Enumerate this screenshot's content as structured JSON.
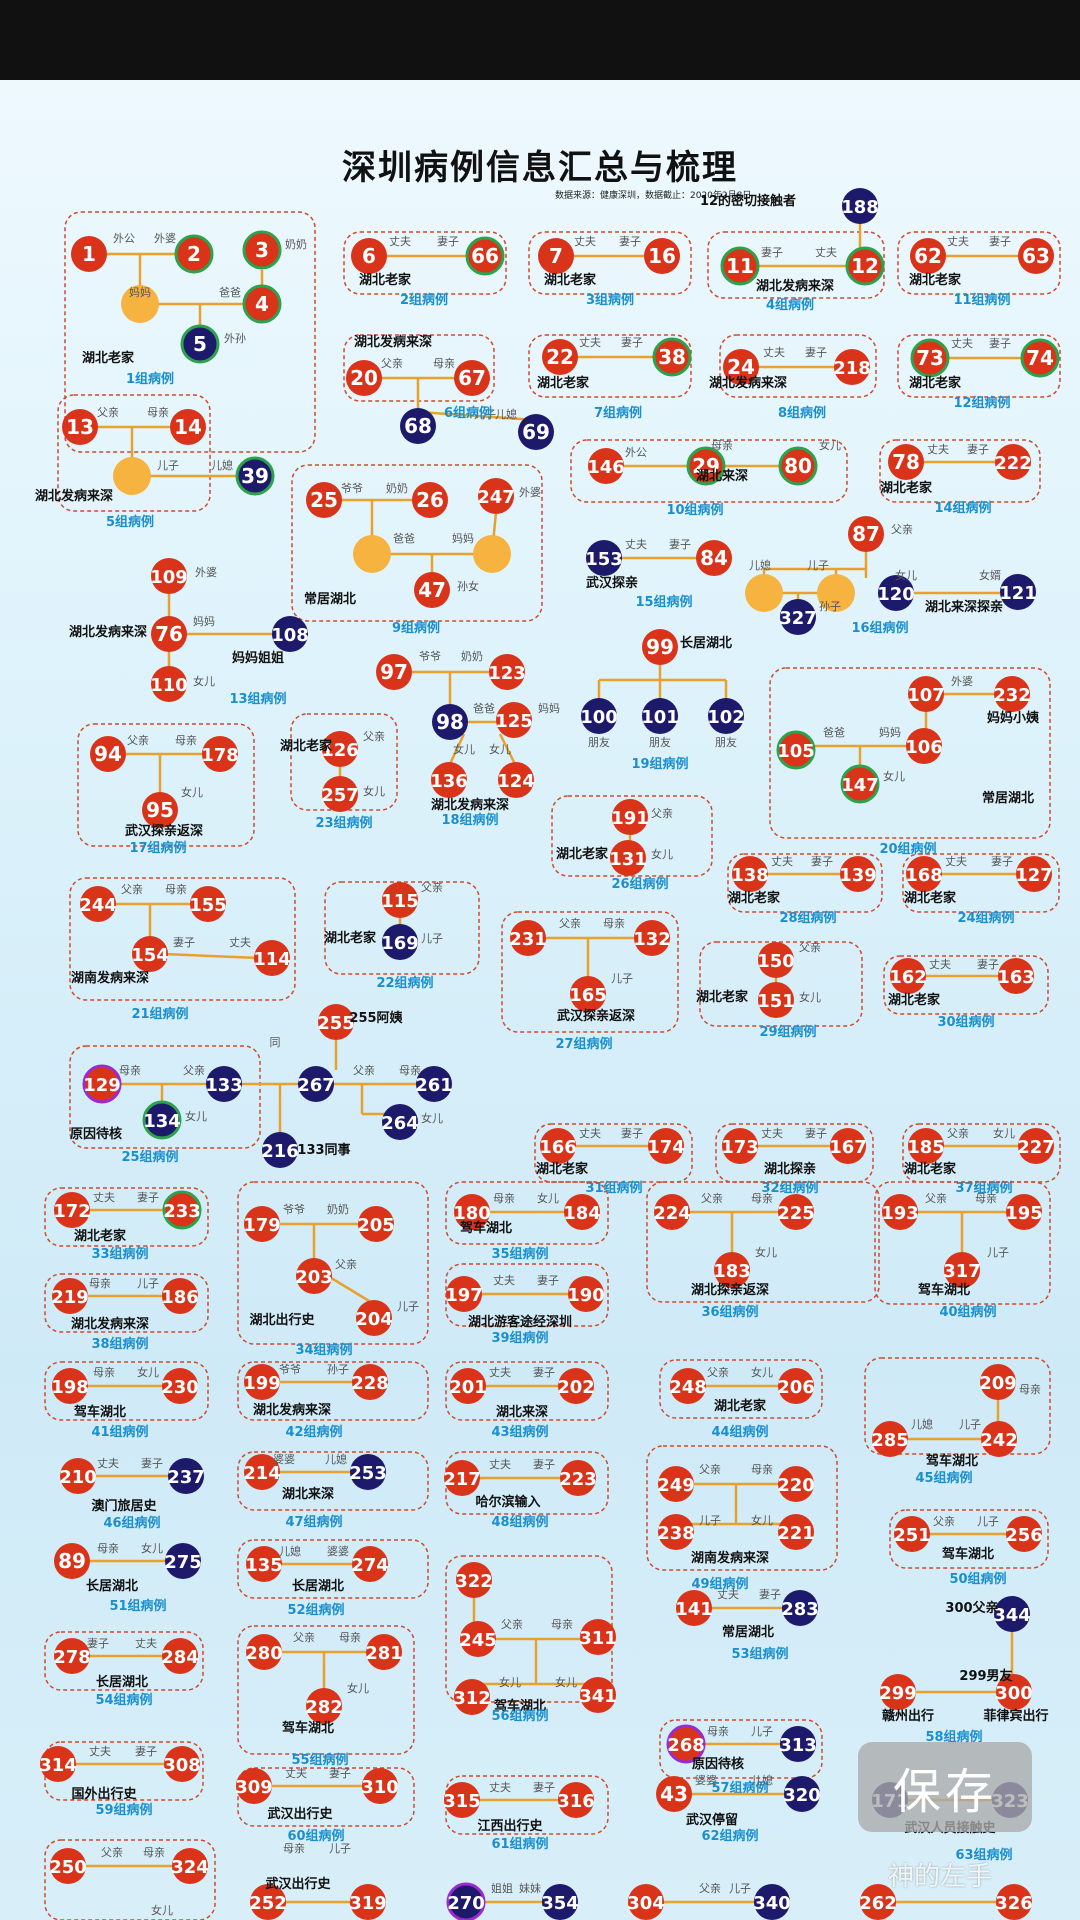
{
  "title": "深圳病例信息汇总与梳理",
  "subtitle": "数据来源：健康深圳，数据截止：2020年2月8日",
  "save_label": "保存",
  "watermark": "神的左手",
  "colors": {
    "red": "#d9341a",
    "navy": "#1e1a6b",
    "yellow": "#f6b33f",
    "line": "#e7a12c",
    "frame": "#d04a2c",
    "group": "#1a8fd0",
    "green": "#2ca24c",
    "purple": "#9b2bd1"
  },
  "groups": [
    {
      "label": "1组病例",
      "nodes": [
        {
          "n": "1"
        },
        {
          "n": "2",
          "ring": "green"
        },
        {
          "n": "3",
          "ring": "green"
        },
        {
          "n": "4",
          "ring": "green"
        },
        {
          "n": "5",
          "c": "navy",
          "ring": "green"
        }
      ],
      "texts": [
        "外公",
        "外婆",
        "妈妈",
        "爸爸",
        "奶奶",
        "外孙",
        "湖北老家"
      ]
    },
    {
      "label": "2组病例",
      "nodes": [
        {
          "n": "6"
        },
        {
          "n": "66",
          "ring": "green"
        }
      ],
      "texts": [
        "丈夫",
        "妻子",
        "湖北老家"
      ]
    },
    {
      "label": "3组病例",
      "nodes": [
        {
          "n": "7"
        },
        {
          "n": "16"
        }
      ],
      "texts": [
        "丈夫",
        "妻子",
        "湖北老家"
      ]
    },
    {
      "label": "4组病例",
      "nodes": [
        {
          "n": "11",
          "ring": "green"
        },
        {
          "n": "12",
          "ring": "green"
        },
        {
          "n": "188",
          "c": "navy"
        }
      ],
      "texts": [
        "妻子",
        "丈夫",
        "12的密切接触者",
        "湖北发病来深"
      ]
    },
    {
      "label": "11组病例",
      "nodes": [
        {
          "n": "62"
        },
        {
          "n": "63"
        }
      ],
      "texts": [
        "丈夫",
        "妻子",
        "湖北老家"
      ]
    },
    {
      "label": "6组病例",
      "nodes": [
        {
          "n": "20"
        },
        {
          "n": "67"
        },
        {
          "n": "68",
          "c": "navy"
        },
        {
          "n": "69",
          "c": "navy"
        }
      ],
      "texts": [
        "湖北发病来深",
        "父亲",
        "母亲",
        "儿子",
        "儿媳"
      ]
    },
    {
      "label": "7组病例",
      "nodes": [
        {
          "n": "22"
        },
        {
          "n": "38",
          "ring": "green"
        }
      ],
      "texts": [
        "丈夫",
        "妻子",
        "湖北老家"
      ]
    },
    {
      "label": "8组病例",
      "nodes": [
        {
          "n": "24"
        },
        {
          "n": "218"
        }
      ],
      "texts": [
        "丈夫",
        "妻子",
        "湖北发病来深"
      ]
    },
    {
      "label": "12组病例",
      "nodes": [
        {
          "n": "73",
          "ring": "green"
        },
        {
          "n": "74",
          "ring": "green"
        }
      ],
      "texts": [
        "丈夫",
        "妻子",
        "湖北老家"
      ]
    },
    {
      "label": "5组病例",
      "nodes": [
        {
          "n": "13"
        },
        {
          "n": "14"
        },
        {
          "n": "39",
          "c": "navy",
          "ring": "green"
        }
      ],
      "texts": [
        "父亲",
        "母亲",
        "儿子",
        "儿媳",
        "湖北发病来深"
      ]
    },
    {
      "label": "10组病例",
      "nodes": [
        {
          "n": "146"
        },
        {
          "n": "29",
          "ring": "green"
        },
        {
          "n": "80",
          "ring": "green"
        }
      ],
      "texts": [
        "外公",
        "母亲",
        "女儿",
        "湖北来深"
      ]
    },
    {
      "label": "14组病例",
      "nodes": [
        {
          "n": "78"
        },
        {
          "n": "222"
        }
      ],
      "texts": [
        "丈夫",
        "妻子",
        "湖北老家"
      ]
    },
    {
      "label": "9组病例",
      "nodes": [
        {
          "n": "25"
        },
        {
          "n": "26"
        },
        {
          "n": "247"
        },
        {
          "n": "47"
        }
      ],
      "texts": [
        "爷爷",
        "奶奶",
        "外婆",
        "爸爸",
        "妈妈",
        "孙女",
        "常居湖北"
      ]
    },
    {
      "label": "15组病例",
      "nodes": [
        {
          "n": "153",
          "c": "navy"
        },
        {
          "n": "84"
        }
      ],
      "texts": [
        "丈夫",
        "妻子",
        "武汉探亲"
      ]
    },
    {
      "label": "16组病例",
      "nodes": [
        {
          "n": "87"
        },
        {
          "n": "327",
          "c": "navy"
        },
        {
          "n": "120",
          "c": "navy"
        },
        {
          "n": "121",
          "c": "navy"
        }
      ],
      "texts": [
        "父亲",
        "儿媳",
        "儿子",
        "孙子",
        "女儿",
        "女婿",
        "湖北来深探亲"
      ]
    },
    {
      "label": "13组病例",
      "nodes": [
        {
          "n": "109"
        },
        {
          "n": "76"
        },
        {
          "n": "110"
        },
        {
          "n": "108",
          "c": "navy"
        }
      ],
      "texts": [
        "外婆",
        "湖北发病来深",
        "妈妈",
        "女儿",
        "妈妈姐姐"
      ]
    },
    {
      "label": "19组病例",
      "nodes": [
        {
          "n": "99"
        },
        {
          "n": "100",
          "c": "navy"
        },
        {
          "n": "101",
          "c": "navy"
        },
        {
          "n": "102",
          "c": "navy"
        }
      ],
      "texts": [
        "长居湖北",
        "朋友",
        "朋友",
        "朋友"
      ]
    },
    {
      "label": "18组病例",
      "nodes": [
        {
          "n": "97"
        },
        {
          "n": "123"
        },
        {
          "n": "98",
          "c": "navy"
        },
        {
          "n": "125"
        },
        {
          "n": "136"
        },
        {
          "n": "124"
        }
      ],
      "texts": [
        "爷爷",
        "奶奶",
        "爸爸",
        "妈妈",
        "女儿",
        "女儿",
        "湖北发病来深"
      ]
    },
    {
      "label": "17组病例",
      "nodes": [
        {
          "n": "94"
        },
        {
          "n": "178"
        },
        {
          "n": "95"
        }
      ],
      "texts": [
        "父亲",
        "母亲",
        "女儿",
        "武汉探亲返深"
      ]
    },
    {
      "label": "23组病例",
      "nodes": [
        {
          "n": "126"
        },
        {
          "n": "257"
        }
      ],
      "texts": [
        "父亲",
        "女儿",
        "湖北老家"
      ]
    },
    {
      "label": "20组病例",
      "nodes": [
        {
          "n": "107"
        },
        {
          "n": "232"
        },
        {
          "n": "105",
          "ring": "green"
        },
        {
          "n": "106"
        },
        {
          "n": "147",
          "ring": "green"
        }
      ],
      "texts": [
        "外婆",
        "妈妈小姨",
        "爸爸",
        "妈妈",
        "女儿",
        "常居湖北"
      ]
    },
    {
      "label": "26组病例",
      "nodes": [
        {
          "n": "191"
        },
        {
          "n": "131"
        }
      ],
      "texts": [
        "父亲",
        "女儿",
        "湖北老家"
      ]
    },
    {
      "label": "28组病例",
      "nodes": [
        {
          "n": "138"
        },
        {
          "n": "139"
        }
      ],
      "texts": [
        "丈夫",
        "妻子",
        "湖北老家"
      ]
    },
    {
      "label": "24组病例",
      "nodes": [
        {
          "n": "168"
        },
        {
          "n": "127"
        }
      ],
      "texts": [
        "丈夫",
        "妻子",
        "湖北老家"
      ]
    },
    {
      "label": "21组病例",
      "nodes": [
        {
          "n": "244"
        },
        {
          "n": "155"
        },
        {
          "n": "154"
        },
        {
          "n": "114"
        }
      ],
      "texts": [
        "父亲",
        "母亲",
        "妻子",
        "丈夫",
        "湖南发病来深"
      ]
    },
    {
      "label": "22组病例",
      "nodes": [
        {
          "n": "115"
        },
        {
          "n": "169",
          "c": "navy"
        }
      ],
      "texts": [
        "父亲",
        "儿子",
        "湖北老家"
      ]
    },
    {
      "label": "27组病例",
      "nodes": [
        {
          "n": "231"
        },
        {
          "n": "132"
        },
        {
          "n": "165"
        }
      ],
      "texts": [
        "父亲",
        "母亲",
        "儿子",
        "武汉探亲返深"
      ]
    },
    {
      "label": "29组病例",
      "nodes": [
        {
          "n": "150"
        },
        {
          "n": "151"
        }
      ],
      "texts": [
        "父亲",
        "女儿",
        "湖北老家"
      ]
    },
    {
      "label": "30组病例",
      "nodes": [
        {
          "n": "162"
        },
        {
          "n": "163"
        }
      ],
      "texts": [
        "丈夫",
        "妻子",
        "湖北老家"
      ]
    },
    {
      "label": "25组病例",
      "nodes": [
        {
          "n": "129",
          "ring": "purple"
        },
        {
          "n": "133",
          "c": "navy"
        },
        {
          "n": "134",
          "c": "navy",
          "ring": "green"
        },
        {
          "n": "255"
        },
        {
          "n": "267",
          "c": "navy"
        },
        {
          "n": "261",
          "c": "navy"
        },
        {
          "n": "264",
          "c": "navy"
        },
        {
          "n": "216",
          "c": "navy"
        }
      ],
      "texts": [
        "母亲",
        "父亲",
        "女儿",
        "原因待核",
        "255阿姨",
        "父亲",
        "母亲",
        "女儿",
        "同",
        "133同事"
      ]
    },
    {
      "label": "31组病例",
      "nodes": [
        {
          "n": "166"
        },
        {
          "n": "174"
        }
      ],
      "texts": [
        "丈夫",
        "妻子",
        "湖北老家"
      ]
    },
    {
      "label": "32组病例",
      "nodes": [
        {
          "n": "173"
        },
        {
          "n": "167"
        }
      ],
      "texts": [
        "丈夫",
        "妻子",
        "湖北探亲"
      ]
    },
    {
      "label": "37组病例",
      "nodes": [
        {
          "n": "185"
        },
        {
          "n": "227"
        }
      ],
      "texts": [
        "父亲",
        "女儿",
        "湖北老家"
      ]
    },
    {
      "label": "33组病例",
      "nodes": [
        {
          "n": "172"
        },
        {
          "n": "233",
          "ring": "green"
        }
      ],
      "texts": [
        "丈夫",
        "妻子",
        "湖北老家"
      ]
    },
    {
      "label": "34组病例",
      "nodes": [
        {
          "n": "179"
        },
        {
          "n": "205"
        },
        {
          "n": "203"
        },
        {
          "n": "204"
        }
      ],
      "texts": [
        "爷爷",
        "奶奶",
        "父亲",
        "儿子",
        "湖北出行史"
      ]
    },
    {
      "label": "35组病例",
      "nodes": [
        {
          "n": "180"
        },
        {
          "n": "184"
        }
      ],
      "texts": [
        "母亲",
        "女儿",
        "驾车湖北"
      ]
    },
    {
      "label": "36组病例",
      "nodes": [
        {
          "n": "224"
        },
        {
          "n": "225"
        },
        {
          "n": "183"
        }
      ],
      "texts": [
        "父亲",
        "母亲",
        "女儿",
        "湖北探亲返深"
      ]
    },
    {
      "label": "40组病例",
      "nodes": [
        {
          "n": "193"
        },
        {
          "n": "195"
        },
        {
          "n": "317"
        }
      ],
      "texts": [
        "父亲",
        "母亲",
        "儿子",
        "驾车湖北"
      ]
    },
    {
      "label": "38组病例",
      "nodes": [
        {
          "n": "219"
        },
        {
          "n": "186"
        }
      ],
      "texts": [
        "母亲",
        "儿子",
        "湖北发病来深"
      ]
    },
    {
      "label": "39组病例",
      "nodes": [
        {
          "n": "197"
        },
        {
          "n": "190"
        }
      ],
      "texts": [
        "丈夫",
        "妻子",
        "湖北游客途经深圳"
      ]
    },
    {
      "label": "41组病例",
      "nodes": [
        {
          "n": "198"
        },
        {
          "n": "230"
        }
      ],
      "texts": [
        "母亲",
        "女儿",
        "驾车湖北"
      ]
    },
    {
      "label": "42组病例",
      "nodes": [
        {
          "n": "199"
        },
        {
          "n": "228"
        }
      ],
      "texts": [
        "爷爷",
        "孙子",
        "湖北发病来深"
      ]
    },
    {
      "label": "43组病例",
      "nodes": [
        {
          "n": "201"
        },
        {
          "n": "202"
        }
      ],
      "texts": [
        "丈夫",
        "妻子",
        "湖北来深"
      ]
    },
    {
      "label": "44组病例",
      "nodes": [
        {
          "n": "248"
        },
        {
          "n": "206"
        }
      ],
      "texts": [
        "父亲",
        "女儿",
        "湖北老家"
      ]
    },
    {
      "label": "45组病例",
      "nodes": [
        {
          "n": "209"
        },
        {
          "n": "285"
        },
        {
          "n": "242"
        }
      ],
      "texts": [
        "母亲",
        "儿媳",
        "儿子",
        "驾车湖北"
      ]
    },
    {
      "label": "46组病例",
      "nodes": [
        {
          "n": "210"
        },
        {
          "n": "237",
          "c": "navy"
        }
      ],
      "texts": [
        "丈夫",
        "妻子",
        "澳门旅居史"
      ]
    },
    {
      "label": "47组病例",
      "nodes": [
        {
          "n": "214"
        },
        {
          "n": "253",
          "c": "navy"
        }
      ],
      "texts": [
        "婆婆",
        "儿媳",
        "湖北来深"
      ]
    },
    {
      "label": "48组病例",
      "nodes": [
        {
          "n": "217"
        },
        {
          "n": "223"
        }
      ],
      "texts": [
        "丈夫",
        "妻子",
        "哈尔滨输入"
      ]
    },
    {
      "label": "49组病例",
      "nodes": [
        {
          "n": "249"
        },
        {
          "n": "220"
        },
        {
          "n": "238"
        },
        {
          "n": "221"
        }
      ],
      "texts": [
        "父亲",
        "母亲",
        "儿子",
        "女儿",
        "湖南发病来深"
      ]
    },
    {
      "label": "50组病例",
      "nodes": [
        {
          "n": "251"
        },
        {
          "n": "256"
        }
      ],
      "texts": [
        "父亲",
        "儿子",
        "驾车湖北"
      ]
    },
    {
      "label": "51组病例",
      "nodes": [
        {
          "n": "89"
        },
        {
          "n": "275",
          "c": "navy"
        }
      ],
      "texts": [
        "母亲",
        "女儿",
        "长居湖北"
      ]
    },
    {
      "label": "52组病例",
      "nodes": [
        {
          "n": "135"
        },
        {
          "n": "274"
        }
      ],
      "texts": [
        "儿媳",
        "婆婆",
        "长居湖北"
      ]
    },
    {
      "label": "56组病例",
      "nodes": [
        {
          "n": "322"
        },
        {
          "n": "245"
        },
        {
          "n": "311"
        },
        {
          "n": "312"
        },
        {
          "n": "341"
        }
      ],
      "texts": [
        "父亲",
        "母亲",
        "女儿",
        "女儿",
        "驾车湖北"
      ]
    },
    {
      "label": "53组病例",
      "nodes": [
        {
          "n": "141"
        },
        {
          "n": "283",
          "c": "navy"
        }
      ],
      "texts": [
        "丈夫",
        "妻子",
        "常居湖北"
      ]
    },
    {
      "label": "58组病例",
      "nodes": [
        {
          "n": "344",
          "c": "navy"
        },
        {
          "n": "299"
        },
        {
          "n": "300"
        }
      ],
      "texts": [
        "300父亲",
        "299男友",
        "赣州出行",
        "菲律宾出行"
      ]
    },
    {
      "label": "54组病例",
      "nodes": [
        {
          "n": "278"
        },
        {
          "n": "284"
        }
      ],
      "texts": [
        "妻子",
        "丈夫",
        "长居湖北"
      ]
    },
    {
      "label": "55组病例",
      "nodes": [
        {
          "n": "280"
        },
        {
          "n": "281"
        },
        {
          "n": "282"
        }
      ],
      "texts": [
        "父亲",
        "母亲",
        "女儿",
        "驾车湖北"
      ]
    },
    {
      "label": "57组病例",
      "nodes": [
        {
          "n": "268",
          "ring": "purple"
        },
        {
          "n": "313",
          "c": "navy"
        }
      ],
      "texts": [
        "母亲",
        "儿子",
        "原因待核"
      ]
    },
    {
      "label": "59组病例",
      "nodes": [
        {
          "n": "314"
        },
        {
          "n": "308"
        }
      ],
      "texts": [
        "丈夫",
        "妻子",
        "国外出行史"
      ]
    },
    {
      "label": "60组病例",
      "nodes": [
        {
          "n": "309"
        },
        {
          "n": "310"
        }
      ],
      "texts": [
        "丈夫",
        "妻子",
        "武汉出行史"
      ]
    },
    {
      "label": "61组病例",
      "nodes": [
        {
          "n": "315"
        },
        {
          "n": "316"
        }
      ],
      "texts": [
        "丈夫",
        "妻子",
        "江西出行史"
      ]
    },
    {
      "label": "62组病例",
      "nodes": [
        {
          "n": "43"
        },
        {
          "n": "320",
          "c": "navy"
        }
      ],
      "texts": [
        "婆婆",
        "儿媳",
        "武汉停留"
      ]
    },
    {
      "label": "63组病例",
      "nodes": [
        {
          "n": "171",
          "c": "navy"
        },
        {
          "n": "323",
          "c": "navy"
        }
      ],
      "texts": [
        "武汉人员接触史"
      ]
    },
    {
      "label": "",
      "nodes": [
        {
          "n": "250"
        },
        {
          "n": "324"
        },
        {
          "n": "252"
        },
        {
          "n": "319"
        },
        {
          "n": "270",
          "c": "navy",
          "ring": "purple"
        },
        {
          "n": "354",
          "c": "navy"
        },
        {
          "n": "304"
        },
        {
          "n": "340",
          "c": "navy"
        },
        {
          "n": "262"
        },
        {
          "n": "326"
        }
      ],
      "texts": [
        "父亲",
        "母亲",
        "女儿",
        "母亲",
        "儿子",
        "武汉出行史",
        "姐姐",
        "妹妹",
        "父亲",
        "儿子"
      ]
    }
  ]
}
